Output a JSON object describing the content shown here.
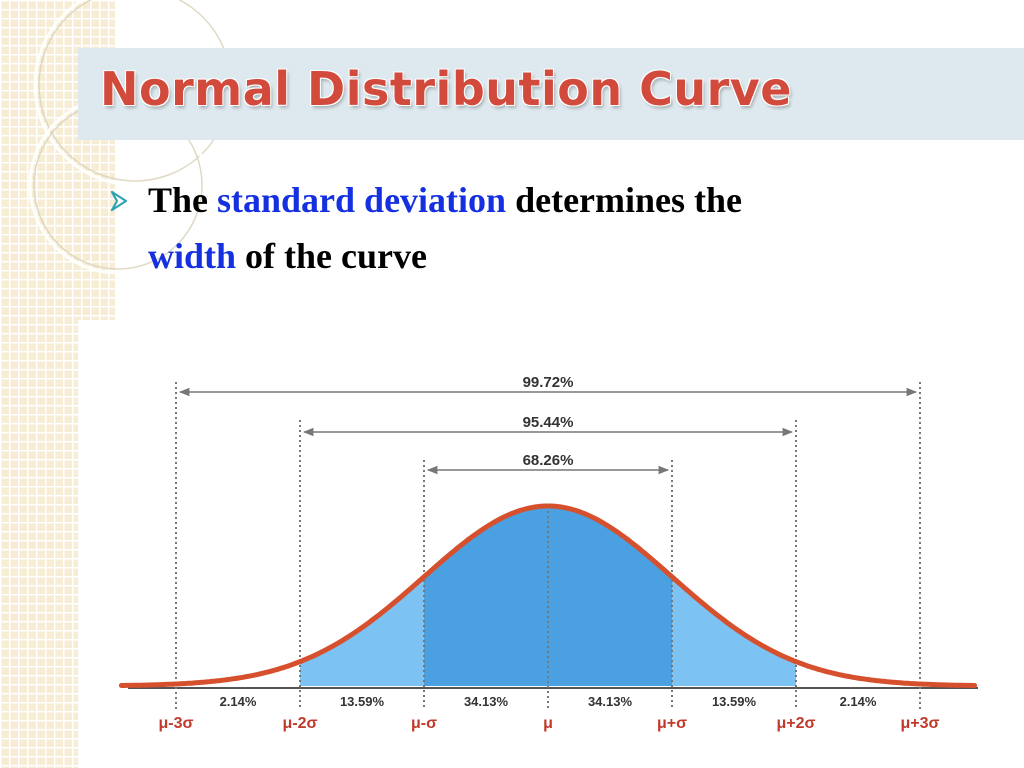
{
  "slide": {
    "title": "Normal Distribution Curve",
    "bullet": {
      "part1": "The ",
      "highlight1": "standard deviation",
      "part2": " determines the",
      "highlight2": "width",
      "part3": " of the curve"
    },
    "colors": {
      "title": "#d24a3c",
      "highlight": "#1530e0",
      "title_band": "#dde9ee",
      "bullet_arrow": "#2fa3b5"
    },
    "icons": [
      "bullet-arrow-icon"
    ]
  },
  "chart_data": {
    "type": "area",
    "title": "",
    "xlabel": "",
    "ylabel": "",
    "curve": "normal density",
    "mean_label": "μ",
    "xlim": [
      -3.5,
      3.5
    ],
    "x_ticks": [
      {
        "value": -3,
        "label": "μ-3σ"
      },
      {
        "value": -2,
        "label": "μ-2σ"
      },
      {
        "value": -1,
        "label": "μ-σ"
      },
      {
        "value": 0,
        "label": "μ"
      },
      {
        "value": 1,
        "label": "μ+σ"
      },
      {
        "value": 2,
        "label": "μ+2σ"
      },
      {
        "value": 3,
        "label": "μ+3σ"
      }
    ],
    "segments": [
      {
        "from": -3,
        "to": -2,
        "label": "2.14%"
      },
      {
        "from": -2,
        "to": -1,
        "label": "13.59%"
      },
      {
        "from": -1,
        "to": 0,
        "label": "34.13%"
      },
      {
        "from": 0,
        "to": 1,
        "label": "34.13%"
      },
      {
        "from": 1,
        "to": 2,
        "label": "13.59%"
      },
      {
        "from": 2,
        "to": 3,
        "label": "2.14%"
      }
    ],
    "ranges": [
      {
        "from": -3,
        "to": 3,
        "label": "99.72%"
      },
      {
        "from": -2,
        "to": 2,
        "label": "95.44%"
      },
      {
        "from": -1,
        "to": 1,
        "label": "68.26%"
      }
    ],
    "shading": [
      {
        "from": -2,
        "to": -1,
        "color": "#7cc2f2"
      },
      {
        "from": -1,
        "to": 1,
        "color": "#4aa0e0"
      },
      {
        "from": 1,
        "to": 2,
        "color": "#7cc2f2"
      }
    ],
    "colors": {
      "curve": "#d6502e",
      "tick_labels": "#c0392b",
      "lines": "#777777"
    }
  }
}
